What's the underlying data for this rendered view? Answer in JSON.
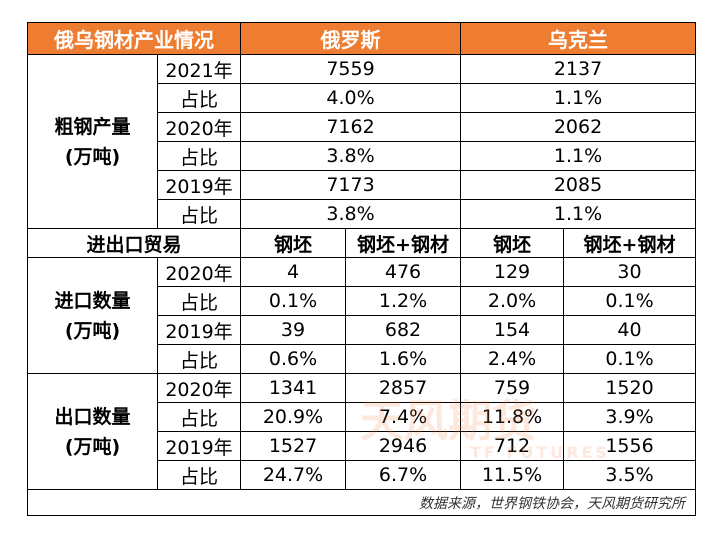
{
  "header": [
    "俄乌钢材产业情况",
    "俄罗斯",
    "乌克兰"
  ],
  "crude_steel": {
    "label": "粗钢产量",
    "unit": "(万吨)",
    "rows": [
      [
        "2021年",
        "7559",
        "2137"
      ],
      [
        "占比",
        "4.0%",
        "1.1%"
      ],
      [
        "2020年",
        "7162",
        "2062"
      ],
      [
        "占比",
        "3.8%",
        "1.1%"
      ],
      [
        "2019年",
        "7173",
        "2085"
      ],
      [
        "占比",
        "3.8%",
        "1.1%"
      ]
    ]
  },
  "trade_header": [
    "进出口贸易",
    "钢坯",
    "钢坯+钢材",
    "钢坯",
    "钢坯+钢材"
  ],
  "imports": {
    "label": "进口数量",
    "unit": "(万吨)",
    "rows": [
      [
        "2020年",
        "4",
        "476",
        "129",
        "30"
      ],
      [
        "占比",
        "0.1%",
        "1.2%",
        "2.0%",
        "0.1%"
      ],
      [
        "2019年",
        "39",
        "682",
        "154",
        "40"
      ],
      [
        "占比",
        "0.6%",
        "1.6%",
        "2.4%",
        "0.1%"
      ]
    ]
  },
  "exports": {
    "label": "出口数量",
    "unit": "(万吨)",
    "rows": [
      [
        "2020年",
        "1341",
        "2857",
        "759",
        "1520"
      ],
      [
        "占比",
        "20.9%",
        "7.4%",
        "11.8%",
        "3.9%"
      ],
      [
        "2019年",
        "1527",
        "2946",
        "712",
        "1556"
      ],
      [
        "占比",
        "24.7%",
        "6.7%",
        "11.5%",
        "3.5%"
      ]
    ]
  },
  "source": "数据来源，世界钢铁协会，天风期货研究所",
  "watermark": {
    "name": "天风期货",
    "latin": "TF FUTURES"
  }
}
